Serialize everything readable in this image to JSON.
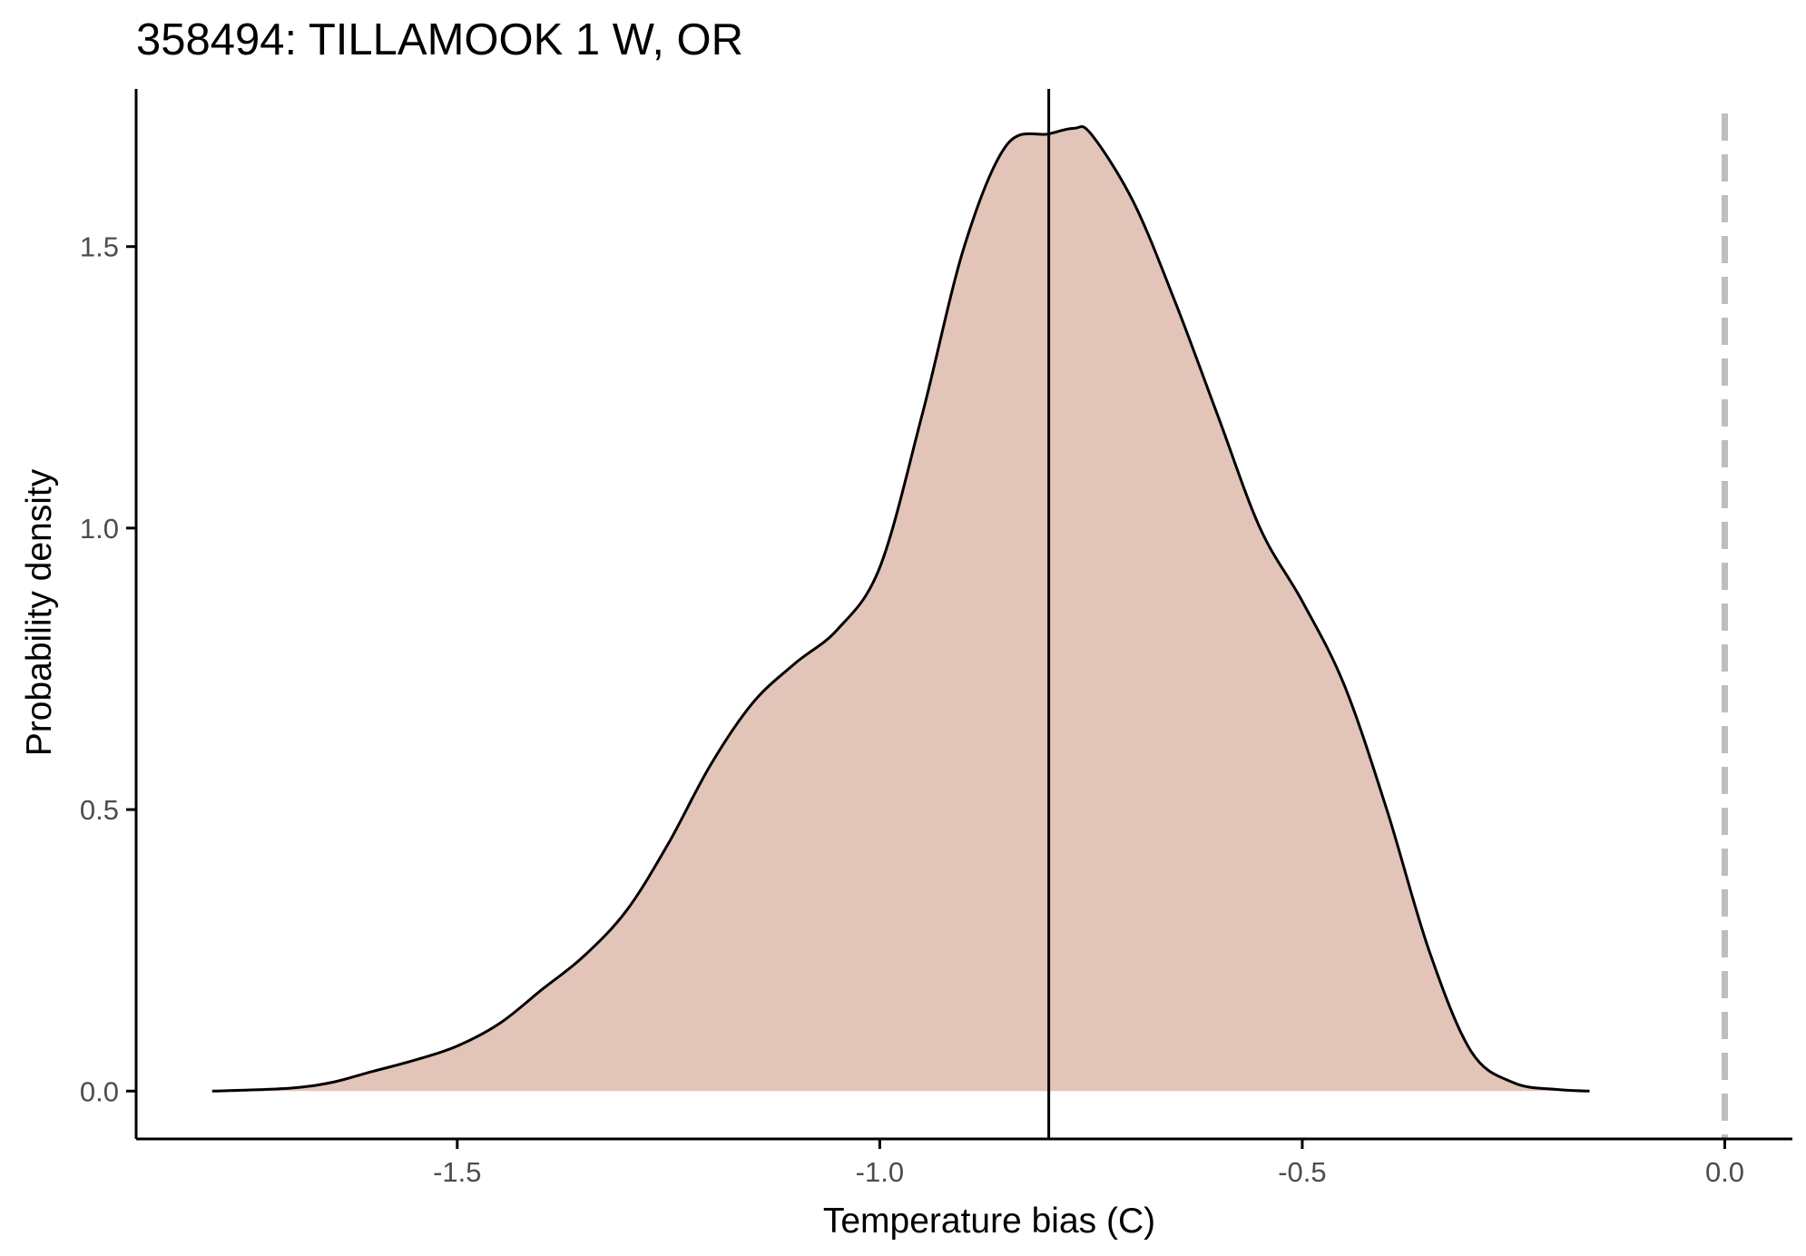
{
  "chart_data": {
    "type": "area",
    "title": "358494: TILLAMOOK 1 W, OR",
    "xlabel": "Temperature bias (C)",
    "ylabel": "Probability density",
    "xlim": [
      -1.88,
      0.08
    ],
    "ylim": [
      -0.085,
      1.78
    ],
    "x_ticks": [
      -1.5,
      -1.0,
      -0.5,
      0.0
    ],
    "x_tick_labels": [
      "-1.5",
      "-1.0",
      "-0.5",
      "0.0"
    ],
    "y_ticks": [
      0.0,
      0.5,
      1.0,
      1.5
    ],
    "y_tick_labels": [
      "0.0",
      "0.5",
      "1.0",
      "1.5"
    ],
    "grid": false,
    "legend": "none",
    "fill_color": "#e2c4b9",
    "line_color": "#000000",
    "reference_lines": [
      {
        "name": "mean",
        "x": -0.8,
        "style": "solid",
        "color": "#000000"
      },
      {
        "name": "zero",
        "x": 0.0,
        "style": "dashed",
        "color": "#bebebe"
      }
    ],
    "series": [
      {
        "x": [
          -1.79,
          -1.7,
          -1.65,
          -1.6,
          -1.55,
          -1.5,
          -1.45,
          -1.4,
          -1.35,
          -1.3,
          -1.25,
          -1.2,
          -1.15,
          -1.1,
          -1.05,
          -1.0,
          -0.95,
          -0.9,
          -0.85,
          -0.8,
          -0.77,
          -0.75,
          -0.7,
          -0.65,
          -0.6,
          -0.55,
          -0.5,
          -0.45,
          -0.4,
          -0.35,
          -0.3,
          -0.25,
          -0.2,
          -0.16
        ],
        "y": [
          0.0,
          0.005,
          0.015,
          0.035,
          0.055,
          0.08,
          0.12,
          0.18,
          0.24,
          0.32,
          0.44,
          0.58,
          0.69,
          0.76,
          0.82,
          0.93,
          1.2,
          1.5,
          1.68,
          1.7,
          1.71,
          1.7,
          1.58,
          1.4,
          1.2,
          1.0,
          0.87,
          0.72,
          0.5,
          0.25,
          0.07,
          0.015,
          0.003,
          0.0
        ]
      }
    ]
  }
}
